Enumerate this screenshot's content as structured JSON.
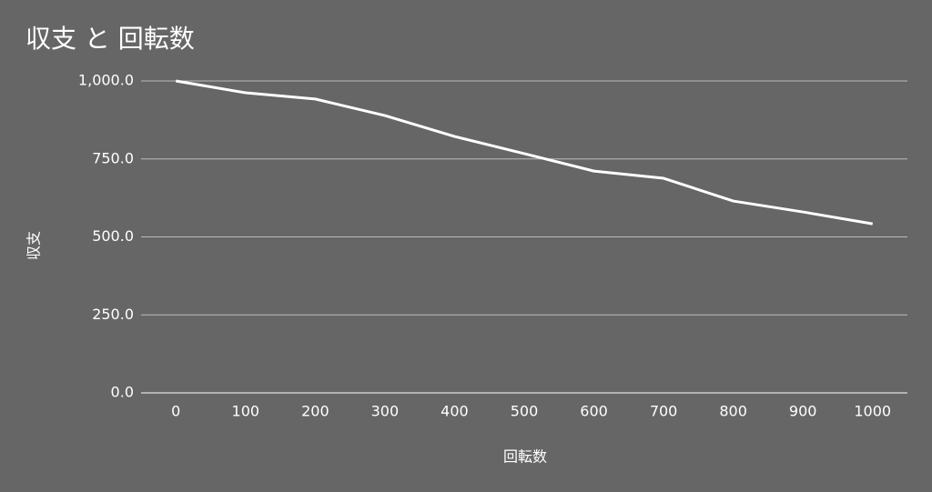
{
  "chart_data": {
    "type": "line",
    "title": "収支 と 回転数",
    "x_label": "回転数",
    "y_label": "収支",
    "categories": [
      "0",
      "100",
      "200",
      "300",
      "400",
      "500",
      "600",
      "700",
      "800",
      "900",
      "1000"
    ],
    "series": [
      {
        "name": "収支",
        "color": "#ffffff",
        "values": [
          1000,
          962,
          942,
          889,
          822,
          767,
          711,
          688,
          615,
          580,
          542
        ]
      }
    ],
    "ylim": [
      0,
      1000
    ],
    "yticks": [
      {
        "value": 0,
        "label": "0.0"
      },
      {
        "value": 250,
        "label": "250.0"
      },
      {
        "value": 500,
        "label": "500.0"
      },
      {
        "value": 750,
        "label": "750.0"
      },
      {
        "value": 1000,
        "label": "1,000.0"
      }
    ],
    "grid": true
  }
}
